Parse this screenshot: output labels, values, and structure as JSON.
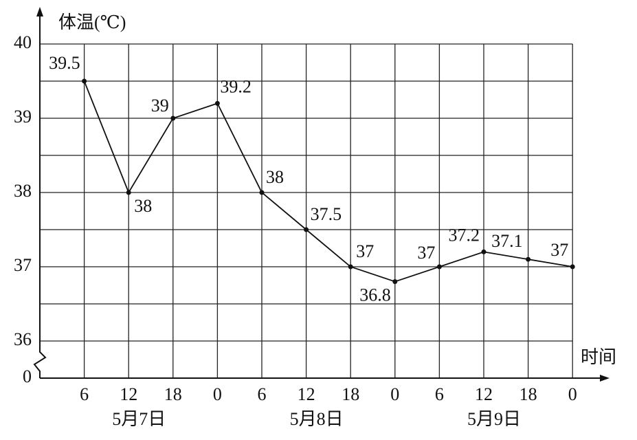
{
  "chart_data": {
    "type": "line",
    "y_label": "体温(℃)",
    "x_label": "时间",
    "categories": [
      "6",
      "12",
      "18",
      "0",
      "6",
      "12",
      "18",
      "0",
      "6",
      "12",
      "18",
      "0"
    ],
    "category_groups": [
      "5月7日",
      "5月8日",
      "5月9日"
    ],
    "values": [
      39.5,
      38,
      39,
      39.2,
      38,
      37.5,
      37,
      36.8,
      37,
      37.2,
      37.1,
      37
    ],
    "color": "#111111",
    "ylim": [
      36,
      40
    ],
    "yticks": [
      0,
      36,
      37,
      38,
      39,
      40
    ],
    "ygrid": [
      36,
      36.5,
      37,
      37.5,
      38,
      38.5,
      39,
      39.5,
      40
    ],
    "axis_break": true,
    "grid": true
  }
}
